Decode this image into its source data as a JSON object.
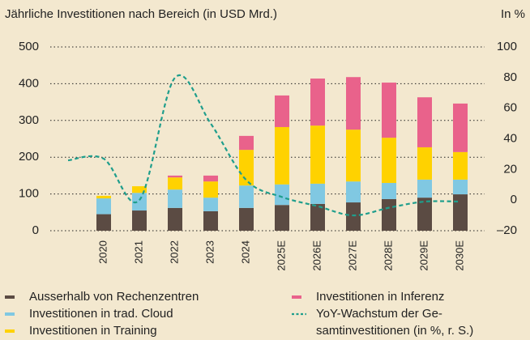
{
  "chart_data": {
    "type": "bar",
    "title": "Jährliche Investitionen nach Bereich (in USD Mrd.)",
    "y2_label": "In %",
    "categories": [
      null,
      "2020",
      "2021",
      "2022",
      "2023",
      "2024",
      "2025E",
      "2026E",
      "2027E",
      "2028E",
      "2029E",
      "2030E"
    ],
    "stacked": true,
    "ylim": [
      0,
      500
    ],
    "yticks": [
      0,
      100,
      200,
      300,
      400,
      500
    ],
    "y2lim": [
      -20,
      100
    ],
    "y2ticks": [
      {
        "value": -20,
        "label": "–20"
      },
      0,
      20,
      40,
      60,
      80,
      100
    ],
    "grid": true,
    "legend": "bottom",
    "series": [
      {
        "name": "Ausserhalb von Rechenzentren",
        "color": "#5b4b43",
        "values": [
          null,
          45,
          55,
          62,
          53,
          62,
          70,
          73,
          77,
          86,
          90,
          99
        ]
      },
      {
        "name": "Investitionen in trad. Cloud",
        "color": "#80c8e2",
        "values": [
          null,
          43,
          48,
          50,
          37,
          61,
          56,
          55,
          57,
          44,
          49,
          40
        ]
      },
      {
        "name": "Investitionen in Training",
        "color": "#ffd200",
        "values": [
          null,
          7,
          18,
          33,
          44,
          97,
          156,
          158,
          141,
          123,
          88,
          75
        ]
      },
      {
        "name": "Investitionen in Inferenz",
        "color": "#e9628b",
        "values": [
          null,
          0,
          0,
          5,
          16,
          38,
          86,
          128,
          143,
          150,
          136,
          132
        ]
      },
      {
        "name": "YoY-Wachstum der Ge-\nsamtinvestitionen (in %, r. S.)",
        "color": "#1f9e8c",
        "type": "line",
        "axis": "y2",
        "values": [
          26,
          27,
          0,
          80,
          50,
          13,
          2,
          -4,
          -10,
          -5,
          -1,
          -1
        ]
      }
    ]
  }
}
